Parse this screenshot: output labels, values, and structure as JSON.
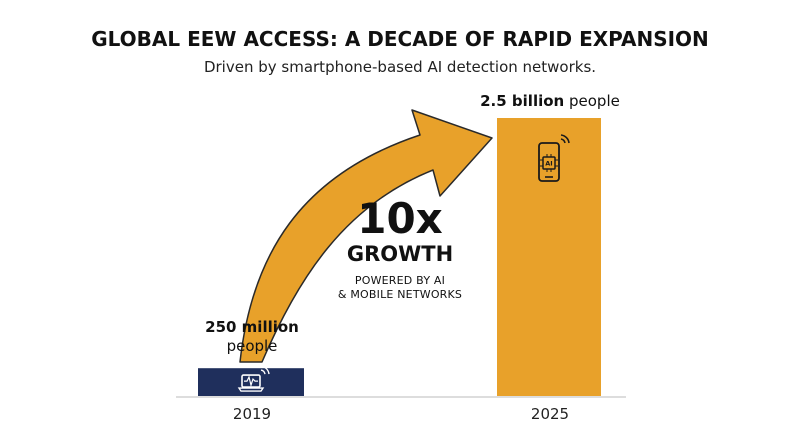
{
  "colors": {
    "bar_2019": "#1f2f5c",
    "bar_2025": "#e8a12a",
    "arrow": "#e8a12a",
    "arrow_outline": "#2a2a2a",
    "icon_light": "#ffffff",
    "icon_dark": "#1a1a1a"
  },
  "chart_data": {
    "type": "bar",
    "title": "GLOBAL EEW ACCESS: A DECADE OF RAPID EXPANSION",
    "subtitle": "Driven by smartphone-based AI detection networks.",
    "categories": [
      "2019",
      "2025"
    ],
    "values": [
      250,
      2500
    ],
    "units": "million people",
    "value_labels": [
      {
        "bold": "250 million",
        "normal": "people",
        "icon": "laptop-seismograph-icon"
      },
      {
        "bold": "2.5 billion",
        "normal": "people",
        "icon": "ai-smartphone-icon"
      }
    ],
    "ylim": [
      0,
      2500
    ],
    "grid": false,
    "annotation": {
      "big": "10x",
      "mid": "GROWTH",
      "small_line1": "POWERED BY AI",
      "small_line2": "& MOBILE NETWORKS"
    }
  }
}
